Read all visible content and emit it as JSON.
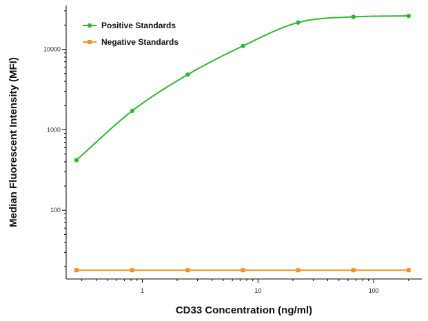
{
  "chart_data": {
    "type": "line",
    "xlabel": "CD33 Concentration (ng/ml)",
    "ylabel": "Median Fluorescent Intensity (MFI)",
    "x_scale": "log",
    "y_scale": "log",
    "xlim": [
      0.22,
      260
    ],
    "ylim": [
      14,
      35000
    ],
    "x_ticks": [
      1,
      10,
      100
    ],
    "x_tick_labels": [
      "1",
      "10",
      "100"
    ],
    "y_ticks": [
      100,
      1000,
      10000
    ],
    "y_tick_labels": [
      "100",
      "1000",
      "10000"
    ],
    "grid": false,
    "legend_position": "top-left",
    "x": [
      0.27,
      0.82,
      2.47,
      7.41,
      22.2,
      66.7,
      200
    ],
    "series": [
      {
        "name": "Positive Standards",
        "color": "#2db82d",
        "marker": "circle",
        "values": [
          420,
          1720,
          4850,
          11000,
          21500,
          25300,
          26000
        ]
      },
      {
        "name": "Negative Standards",
        "color": "#f0922b",
        "marker": "square",
        "values": [
          18,
          18,
          18,
          18,
          18,
          18,
          18
        ]
      }
    ]
  }
}
